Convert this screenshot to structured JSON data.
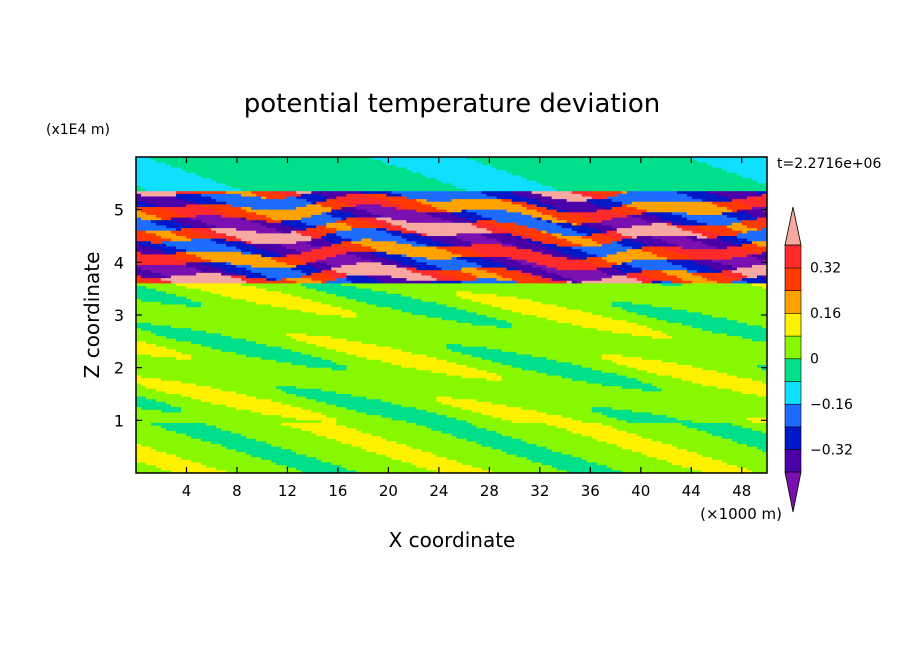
{
  "chart_data": {
    "type": "heatmap",
    "title": "potential temperature deviation",
    "xlabel": "X coordinate",
    "ylabel": "Z coordinate",
    "x_unit": "(×1000 m)",
    "y_unit": "(x1E4 m)",
    "time_label": "t=2.2716e+06",
    "xlim": [
      0,
      50
    ],
    "ylim": [
      0,
      6
    ],
    "x_ticks": [
      4,
      8,
      12,
      16,
      20,
      24,
      28,
      32,
      36,
      40,
      44,
      48
    ],
    "y_ticks": [
      1,
      2,
      3,
      4,
      5
    ],
    "colorbar": {
      "levels": [
        -0.4,
        -0.32,
        -0.24,
        -0.16,
        -0.08,
        0,
        0.08,
        0.16,
        0.24,
        0.32,
        0.4
      ],
      "tick_labels": [
        "0.32",
        "0.16",
        "0",
        "−0.16",
        "−0.32"
      ],
      "tick_values": [
        0.32,
        0.16,
        0,
        -0.16,
        -0.32
      ],
      "colors": [
        "#7a10b0",
        "#4c00a8",
        "#0018c8",
        "#1c6cff",
        "#10e0ff",
        "#00e08a",
        "#88f800",
        "#fff200",
        "#ffa200",
        "#ff3a00",
        "#ff2a2a",
        "#f7a8a0"
      ],
      "extend": "both"
    },
    "bands": [
      {
        "z_min": 0.0,
        "z_max": 0.95,
        "dominant_value": 0.04,
        "note_color": "#7cf000"
      },
      {
        "z_min": 0.95,
        "z_max": 3.6,
        "dominant_value": 0.04
      },
      {
        "z_min": 3.6,
        "z_max": 5.35,
        "pattern": "alternating",
        "values": [
          0.42,
          -0.38,
          0.34,
          -0.36,
          0.42,
          -0.38,
          0.3,
          -0.3
        ]
      },
      {
        "z_min": 5.35,
        "z_max": 6.0,
        "dominant_value": -0.04
      }
    ]
  }
}
